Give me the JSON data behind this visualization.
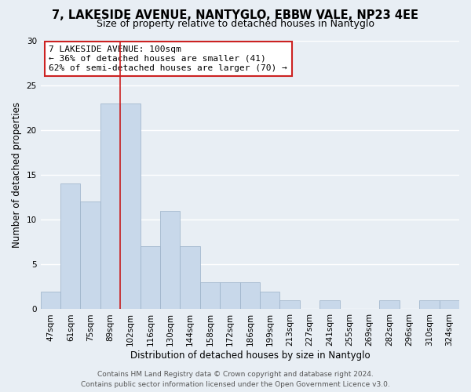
{
  "title": "7, LAKESIDE AVENUE, NANTYGLO, EBBW VALE, NP23 4EE",
  "subtitle": "Size of property relative to detached houses in Nantyglo",
  "xlabel": "Distribution of detached houses by size in Nantyglo",
  "ylabel": "Number of detached properties",
  "bar_labels": [
    "47sqm",
    "61sqm",
    "75sqm",
    "89sqm",
    "102sqm",
    "116sqm",
    "130sqm",
    "144sqm",
    "158sqm",
    "172sqm",
    "186sqm",
    "199sqm",
    "213sqm",
    "227sqm",
    "241sqm",
    "255sqm",
    "269sqm",
    "282sqm",
    "296sqm",
    "310sqm",
    "324sqm"
  ],
  "bar_values": [
    2,
    14,
    12,
    23,
    23,
    7,
    11,
    7,
    3,
    3,
    3,
    2,
    1,
    0,
    1,
    0,
    0,
    1,
    0,
    1,
    1
  ],
  "bar_color": "#c8d8ea",
  "bar_edge_color": "#9ab0c8",
  "vline_color": "#cc2222",
  "ylim": [
    0,
    30
  ],
  "yticks": [
    0,
    5,
    10,
    15,
    20,
    25,
    30
  ],
  "annotation_title": "7 LAKESIDE AVENUE: 100sqm",
  "annotation_line1": "← 36% of detached houses are smaller (41)",
  "annotation_line2": "62% of semi-detached houses are larger (70) →",
  "annotation_box_facecolor": "#ffffff",
  "annotation_box_edgecolor": "#cc2222",
  "footer_line1": "Contains HM Land Registry data © Crown copyright and database right 2024.",
  "footer_line2": "Contains public sector information licensed under the Open Government Licence v3.0.",
  "background_color": "#e8eef4",
  "grid_color": "#ffffff",
  "title_fontsize": 10.5,
  "subtitle_fontsize": 9,
  "axis_label_fontsize": 8.5,
  "tick_fontsize": 7.5,
  "annotation_fontsize": 8,
  "footer_fontsize": 6.5
}
